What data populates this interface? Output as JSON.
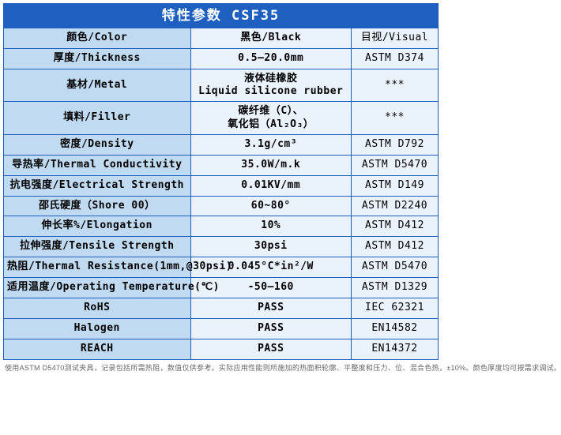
{
  "title": "特性参数 CSF35",
  "colors": {
    "header_bg": "#1f5fbf",
    "label_bg": "#c0daf2",
    "row_bg": "#eaf2fb",
    "border": "#1f5fbf"
  },
  "rows": [
    {
      "label": "颜色/Color",
      "value": "黑色/Black",
      "method": "目视/Visual"
    },
    {
      "label": "厚度/Thickness",
      "value": "0.5–20.0mm",
      "method": "ASTM D374"
    },
    {
      "label": "基材/Metal",
      "value": "液体硅橡胶\nLiquid silicone rubber",
      "method": "***"
    },
    {
      "label": "填料/Filler",
      "value": "碳纤维（C）、\n氧化铝（Al₂O₃）",
      "method": "***"
    },
    {
      "label": "密度/Density",
      "value": "3.1g/cm³",
      "method": "ASTM D792"
    },
    {
      "label": "导热率/Thermal Conductivity",
      "value": "35.0W/m.k",
      "method": "ASTM D5470"
    },
    {
      "label": "抗电强度/Electrical Strength",
      "value": "0.01KV/mm",
      "method": "ASTM D149"
    },
    {
      "label": "邵氏硬度（Shore 00）",
      "value": "60~80°",
      "method": "ASTM D2240"
    },
    {
      "label": "伸长率%/Elongation",
      "value": "10%",
      "method": "ASTM D412"
    },
    {
      "label": "拉伸强度/Tensile Strength",
      "value": "30psi",
      "method": "ASTM D412"
    },
    {
      "label": "热阻/Thermal Resistance(1mm,@30psi)",
      "value": "0.045°C*in²/W",
      "method": "ASTM D5470"
    },
    {
      "label": "适用温度/Operating Temperature(℃)",
      "value": "-50–160",
      "method": "ASTM D1329"
    },
    {
      "label": "RoHS",
      "value": "PASS",
      "method": "IEC 62321"
    },
    {
      "label": "Halogen",
      "value": "PASS",
      "method": "EN14582"
    },
    {
      "label": "REACH",
      "value": "PASS",
      "method": "EN14372"
    }
  ],
  "footnote": "使用ASTM D5470测试夹具，记录包括所需热阻，数值仅供参考。实际应用性能则所施加的热面积轮廓、平整度和压力、位、混合色热，±10%。颜色厚度均可按需求调试。"
}
